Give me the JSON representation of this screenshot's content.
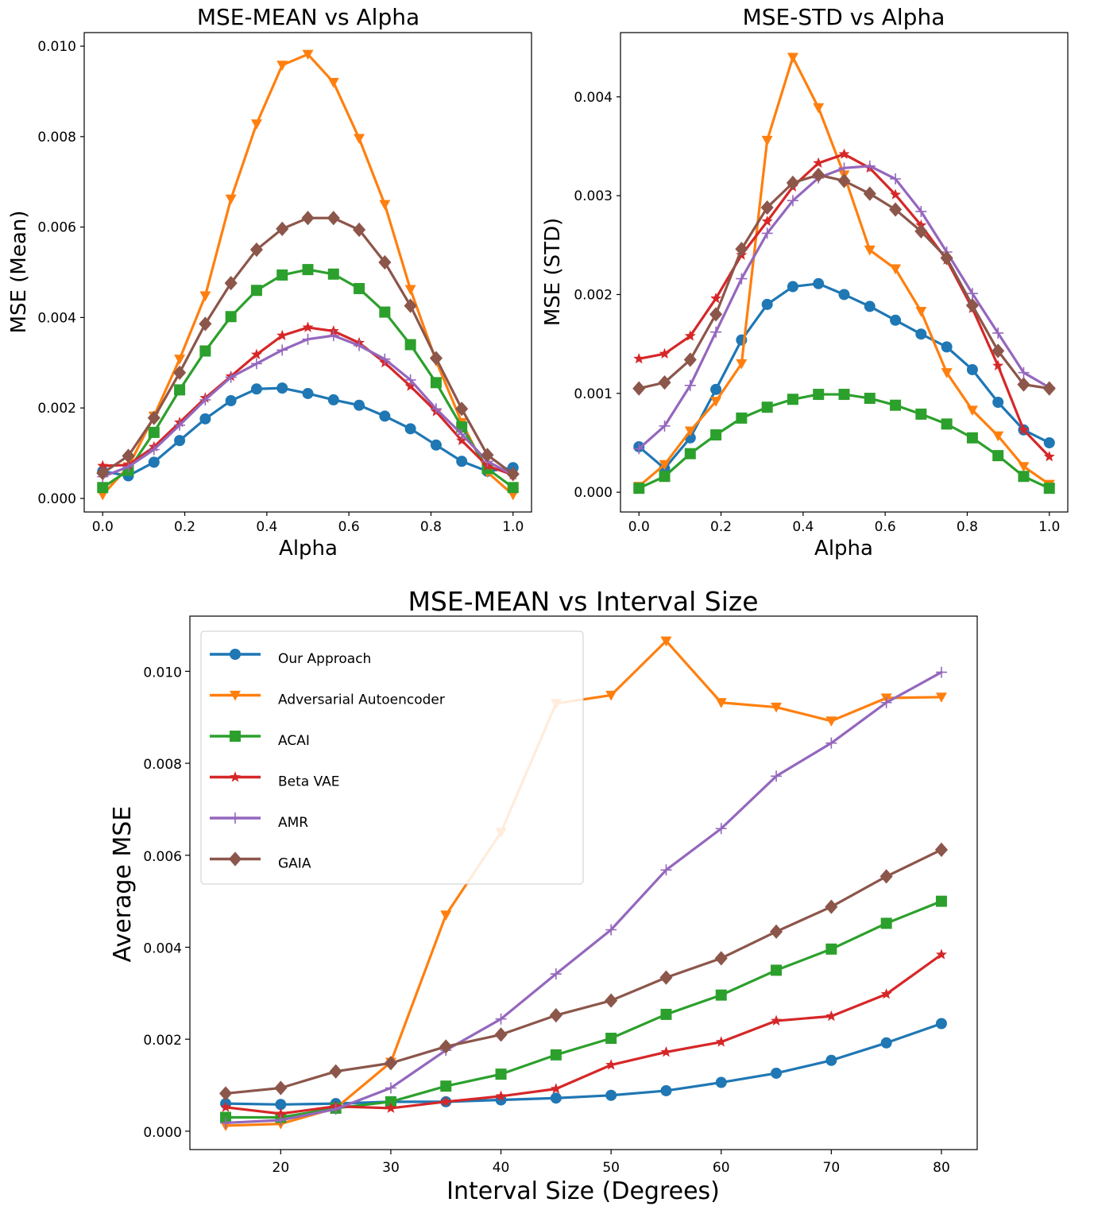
{
  "chart_data": [
    {
      "type": "line",
      "title": "MSE-MEAN vs Alpha",
      "xlabel": "Alpha",
      "ylabel": "MSE (Mean)",
      "xlim": [
        -0.045,
        1.045
      ],
      "ylim": [
        -0.0003,
        0.0103
      ],
      "xticks": [
        0.0,
        0.2,
        0.4,
        0.6,
        0.8,
        1.0
      ],
      "xtick_labels": [
        "0.0",
        "0.2",
        "0.4",
        "0.6",
        "0.8",
        "1.0"
      ],
      "yticks": [
        0.0,
        0.002,
        0.004,
        0.006,
        0.008,
        0.01
      ],
      "ytick_labels": [
        "0.000",
        "0.002",
        "0.004",
        "0.006",
        "0.008",
        "0.010"
      ],
      "grid": false,
      "x": [
        0.0,
        0.0625,
        0.125,
        0.1875,
        0.25,
        0.3125,
        0.375,
        0.4375,
        0.5,
        0.5625,
        0.625,
        0.6875,
        0.75,
        0.8125,
        0.875,
        0.9375,
        1.0
      ],
      "series": [
        {
          "name": "Our Approach",
          "color": "#1f77b4",
          "marker": "circle",
          "values": [
            0.0006,
            0.0005,
            0.0008,
            0.00128,
            0.00176,
            0.00216,
            0.00242,
            0.00244,
            0.00232,
            0.00218,
            0.00206,
            0.00182,
            0.00154,
            0.00118,
            0.00082,
            0.0006,
            0.00068
          ]
        },
        {
          "name": "Adversarial Autoencoder",
          "color": "#ff7f0e",
          "marker": "triangle-down",
          "values": [
            8e-05,
            0.0007,
            0.00182,
            0.00308,
            0.00448,
            0.00662,
            0.00828,
            0.00958,
            0.00982,
            0.0092,
            0.00796,
            0.0065,
            0.00462,
            0.00304,
            0.00168,
            0.00058,
            8e-05
          ]
        },
        {
          "name": "ACAI",
          "color": "#2ca02c",
          "marker": "square",
          "values": [
            0.00024,
            0.00062,
            0.00146,
            0.0024,
            0.00326,
            0.00402,
            0.0046,
            0.00494,
            0.00506,
            0.00496,
            0.00464,
            0.00412,
            0.0034,
            0.00256,
            0.00158,
            0.00066,
            0.00024
          ]
        },
        {
          "name": "Beta VAE",
          "color": "#d62728",
          "marker": "star",
          "values": [
            0.00072,
            0.00074,
            0.00114,
            0.00168,
            0.00222,
            0.0027,
            0.00318,
            0.0036,
            0.00378,
            0.0037,
            0.00344,
            0.003,
            0.00248,
            0.00192,
            0.00128,
            0.00072,
            0.00052
          ]
        },
        {
          "name": "AMR",
          "color": "#9467bd",
          "marker": "plus",
          "values": [
            0.00048,
            0.0007,
            0.00108,
            0.00162,
            0.00218,
            0.00268,
            0.00298,
            0.00328,
            0.00352,
            0.0036,
            0.00338,
            0.00308,
            0.00262,
            0.00198,
            0.00142,
            0.00082,
            0.00052
          ]
        },
        {
          "name": "GAIA",
          "color": "#8c564b",
          "marker": "diamond",
          "values": [
            0.00056,
            0.00094,
            0.00178,
            0.00278,
            0.00386,
            0.00476,
            0.0055,
            0.00596,
            0.0062,
            0.0062,
            0.00594,
            0.00522,
            0.00426,
            0.0031,
            0.00198,
            0.00096,
            0.00054
          ]
        }
      ]
    },
    {
      "type": "line",
      "title": "MSE-STD vs Alpha",
      "xlabel": "Alpha",
      "ylabel": "MSE (STD)",
      "xlim": [
        -0.045,
        1.045
      ],
      "ylim": [
        -0.0002,
        0.00465
      ],
      "xticks": [
        0.0,
        0.2,
        0.4,
        0.6,
        0.8,
        1.0
      ],
      "xtick_labels": [
        "0.0",
        "0.2",
        "0.4",
        "0.6",
        "0.8",
        "1.0"
      ],
      "yticks": [
        0.0,
        0.001,
        0.002,
        0.003,
        0.004
      ],
      "ytick_labels": [
        "0.000",
        "0.001",
        "0.002",
        "0.003",
        "0.004"
      ],
      "grid": false,
      "x": [
        0.0,
        0.0625,
        0.125,
        0.1875,
        0.25,
        0.3125,
        0.375,
        0.4375,
        0.5,
        0.5625,
        0.625,
        0.6875,
        0.75,
        0.8125,
        0.875,
        0.9375,
        1.0
      ],
      "series": [
        {
          "name": "Our Approach",
          "color": "#1f77b4",
          "marker": "circle",
          "values": [
            0.00046,
            0.00024,
            0.00055,
            0.00104,
            0.00154,
            0.0019,
            0.00208,
            0.00211,
            0.002,
            0.00188,
            0.00174,
            0.0016,
            0.00147,
            0.00124,
            0.00091,
            0.00063,
            0.0005
          ]
        },
        {
          "name": "Adversarial Autoencoder",
          "color": "#ff7f0e",
          "marker": "triangle-down",
          "values": [
            6e-05,
            0.00028,
            0.00062,
            0.00092,
            0.0013,
            0.00356,
            0.0044,
            0.00389,
            0.00321,
            0.00245,
            0.00226,
            0.00183,
            0.00121,
            0.00083,
            0.00057,
            0.00026,
            8e-05
          ]
        },
        {
          "name": "ACAI",
          "color": "#2ca02c",
          "marker": "square",
          "values": [
            4e-05,
            0.00016,
            0.00039,
            0.00058,
            0.00075,
            0.00086,
            0.00094,
            0.00099,
            0.00099,
            0.00095,
            0.00088,
            0.00079,
            0.00069,
            0.00055,
            0.00037,
            0.00016,
            4e-05
          ]
        },
        {
          "name": "Beta VAE",
          "color": "#d62728",
          "marker": "star",
          "values": [
            0.00135,
            0.0014,
            0.00158,
            0.00196,
            0.0024,
            0.00274,
            0.00309,
            0.00333,
            0.00342,
            0.00328,
            0.00301,
            0.0027,
            0.00235,
            0.00186,
            0.00128,
            0.00063,
            0.00036
          ]
        },
        {
          "name": "AMR",
          "color": "#9467bd",
          "marker": "plus",
          "values": [
            0.00044,
            0.00067,
            0.00108,
            0.00162,
            0.00216,
            0.00262,
            0.00295,
            0.00318,
            0.00328,
            0.0033,
            0.00317,
            0.00284,
            0.00243,
            0.00201,
            0.00161,
            0.00121,
            0.00106
          ]
        },
        {
          "name": "GAIA",
          "color": "#8c564b",
          "marker": "diamond",
          "values": [
            0.00105,
            0.00111,
            0.00134,
            0.0018,
            0.00246,
            0.00288,
            0.00313,
            0.00321,
            0.00315,
            0.00302,
            0.00286,
            0.00264,
            0.00237,
            0.00189,
            0.00143,
            0.00109,
            0.00105
          ]
        }
      ]
    },
    {
      "type": "line",
      "title": "MSE-MEAN vs Interval Size",
      "xlabel": "Interval Size (Degrees)",
      "ylabel": "Average MSE",
      "xlim": [
        11.75,
        83.25
      ],
      "ylim": [
        -0.0004,
        0.0112
      ],
      "xticks": [
        20,
        30,
        40,
        50,
        60,
        70,
        80
      ],
      "xtick_labels": [
        "20",
        "30",
        "40",
        "50",
        "60",
        "70",
        "80"
      ],
      "yticks": [
        0.0,
        0.002,
        0.004,
        0.006,
        0.008,
        0.01
      ],
      "ytick_labels": [
        "0.000",
        "0.002",
        "0.004",
        "0.006",
        "0.008",
        "0.010"
      ],
      "grid": false,
      "legend": "top-left",
      "x": [
        15,
        20,
        25,
        30,
        35,
        40,
        45,
        50,
        55,
        60,
        65,
        70,
        75,
        80
      ],
      "series": [
        {
          "name": "Our Approach",
          "color": "#1f77b4",
          "marker": "circle",
          "values": [
            0.0006,
            0.00058,
            0.0006,
            0.00064,
            0.00064,
            0.00068,
            0.00072,
            0.00078,
            0.00088,
            0.00106,
            0.00126,
            0.00154,
            0.00192,
            0.00234
          ]
        },
        {
          "name": "Adversarial Autoencoder",
          "color": "#ff7f0e",
          "marker": "triangle-down",
          "values": [
            0.00012,
            0.00016,
            0.0005,
            0.0015,
            0.0047,
            0.0065,
            0.0093,
            0.00948,
            0.01066,
            0.00932,
            0.00922,
            0.00892,
            0.00942,
            0.00944
          ]
        },
        {
          "name": "ACAI",
          "color": "#2ca02c",
          "marker": "square",
          "values": [
            0.0003,
            0.0003,
            0.0005,
            0.00064,
            0.00098,
            0.00124,
            0.00166,
            0.00202,
            0.00254,
            0.00296,
            0.0035,
            0.00396,
            0.00452,
            0.005
          ]
        },
        {
          "name": "Beta VAE",
          "color": "#d62728",
          "marker": "star",
          "values": [
            0.00052,
            0.00038,
            0.00054,
            0.0005,
            0.00064,
            0.00076,
            0.00092,
            0.00144,
            0.00172,
            0.00194,
            0.0024,
            0.0025,
            0.00298,
            0.00384
          ]
        },
        {
          "name": "AMR",
          "color": "#9467bd",
          "marker": "plus",
          "values": [
            0.00018,
            0.00024,
            0.00048,
            0.00094,
            0.00176,
            0.00244,
            0.00342,
            0.00438,
            0.00568,
            0.00658,
            0.00772,
            0.00844,
            0.00932,
            0.00998
          ]
        },
        {
          "name": "GAIA",
          "color": "#8c564b",
          "marker": "diamond",
          "values": [
            0.00082,
            0.00094,
            0.0013,
            0.00148,
            0.00184,
            0.0021,
            0.00252,
            0.00284,
            0.00334,
            0.00376,
            0.00434,
            0.00488,
            0.00554,
            0.00612
          ]
        }
      ]
    }
  ]
}
